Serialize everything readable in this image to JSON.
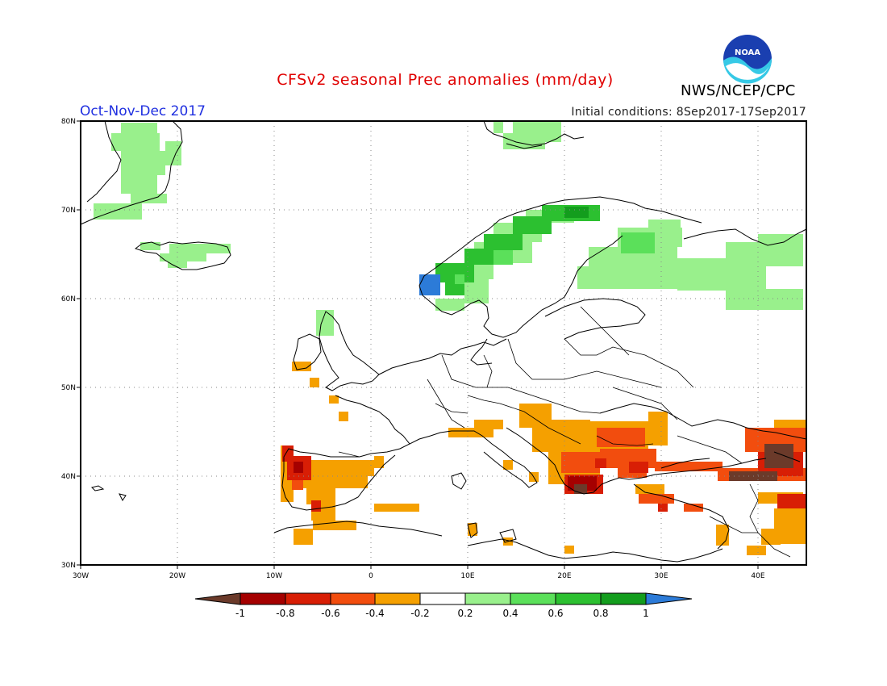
{
  "header": {
    "title": "CFSv2 seasonal Prec anomalies (mm/day)",
    "period": "Oct-Nov-Dec 2017",
    "initial_conditions": "Initial conditions: 8Sep2017-17Sep2017",
    "agency": "NWS/NCEP/CPC",
    "logo_text": "NOAA"
  },
  "map": {
    "region": "Europe",
    "lon_range": [
      -30,
      45
    ],
    "lat_range": [
      30,
      80
    ],
    "lat_ticks": [
      "30N",
      "40N",
      "50N",
      "60N",
      "70N",
      "80N"
    ],
    "lon_ticks": [
      "30W",
      "20W",
      "10W",
      "0",
      "10E",
      "20E",
      "30E",
      "40E"
    ],
    "grid": true
  },
  "colorbar": {
    "tick_labels": [
      "-1",
      "-0.8",
      "-0.6",
      "-0.4",
      "-0.2",
      "0.2",
      "0.4",
      "0.6",
      "0.8",
      "1"
    ],
    "colors": {
      "lt_-1": "#6b3a2a",
      "-1_-0.8": "#a50000",
      "-0.8_-0.6": "#d81e05",
      "-0.6_-0.4": "#f24d0e",
      "-0.4_-0.2": "#f5a000",
      "-0.2_0.2": "#ffffff",
      "0.2_0.4": "#99f08c",
      "0.4_0.6": "#5be05a",
      "0.6_0.8": "#2cc030",
      "0.8_1": "#139d1d",
      "gt_1": "#2c7bd8"
    }
  },
  "anomalies": [
    {
      "name": "Greenland",
      "level": "0.2_0.4"
    },
    {
      "name": "Iceland",
      "level": "0.2_0.4"
    },
    {
      "name": "Svalbard",
      "level": "0.2_0.4"
    },
    {
      "name": "Norway west coast",
      "level": "0.6_0.8"
    },
    {
      "name": "Norway Bergen",
      "level": "gt_1"
    },
    {
      "name": "NW Russia",
      "level": "0.2_0.4"
    },
    {
      "name": "Portugal",
      "level": "-0.8_-0.6"
    },
    {
      "name": "Spain",
      "level": "-0.4_-0.2"
    },
    {
      "name": "Balkans",
      "level": "-0.4_-0.2"
    },
    {
      "name": "Greece",
      "level": "-1_-0.8"
    },
    {
      "name": "Turkey",
      "level": "-0.6_-0.4"
    },
    {
      "name": "Caucasus",
      "level": "lt_-1"
    },
    {
      "name": "Middle East",
      "level": "-0.4_-0.2"
    }
  ]
}
